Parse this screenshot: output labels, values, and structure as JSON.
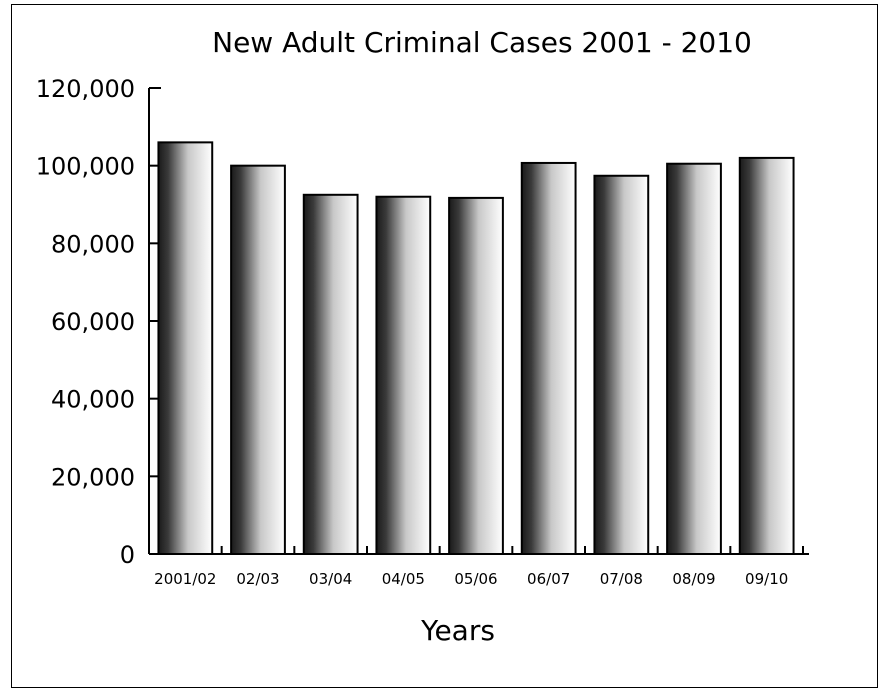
{
  "chart_data": {
    "type": "bar",
    "title": "New Adult Criminal Cases 2001 - 2010",
    "xlabel": "Years",
    "ylabel": "",
    "categories": [
      "2001/02",
      "02/03",
      "03/04",
      "04/05",
      "05/06",
      "06/07",
      "07/08",
      "08/09",
      "09/10"
    ],
    "values": [
      106000,
      100000,
      92500,
      92000,
      91700,
      100700,
      97400,
      100500,
      102000
    ],
    "ylim": [
      0,
      120000
    ],
    "yticks": [
      "0",
      "20,000",
      "40,000",
      "60,000",
      "80,000",
      "100,000",
      "120,000"
    ],
    "ytick_values": [
      0,
      20000,
      40000,
      60000,
      80000,
      100000,
      120000
    ],
    "grid": false,
    "legend": "none",
    "bar_fill": "gradient dark-to-white"
  }
}
